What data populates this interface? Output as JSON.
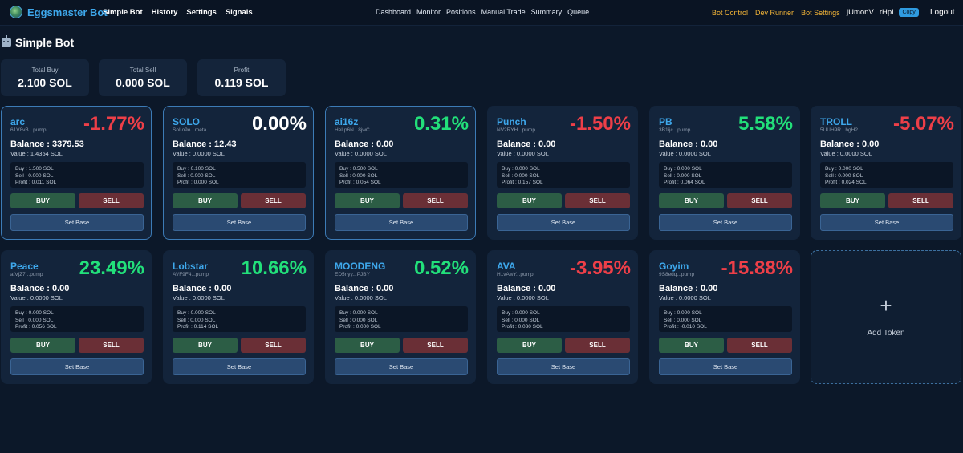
{
  "brand": {
    "name": "Eggsmaster Bot"
  },
  "nav_left": [
    "Simple Bot",
    "History",
    "Settings",
    "Signals"
  ],
  "nav_center": [
    "Dashboard",
    "Monitor",
    "Positions",
    "Manual Trade",
    "Summary",
    "Queue"
  ],
  "nav_right": [
    "Bot Control",
    "Dev Runner",
    "Bot Settings"
  ],
  "wallet": {
    "address": "jUmonV...rHpL",
    "copy_label": "Copy"
  },
  "logout_label": "Logout",
  "page": {
    "title": "Simple Bot"
  },
  "stats": [
    {
      "label": "Total Buy",
      "value": "2.100 SOL"
    },
    {
      "label": "Total Sell",
      "value": "0.000 SOL"
    },
    {
      "label": "Profit",
      "value": "0.119 SOL"
    }
  ],
  "buttons": {
    "buy": "BUY",
    "sell": "SELL",
    "set_base": "Set Base"
  },
  "tokens": [
    {
      "name": "arc",
      "addr": "61V8vB...pump",
      "change": "-1.77%",
      "trend": "down",
      "selected": true,
      "balance": "Balance : 3379.53",
      "value": "Value : 1.4354 SOL",
      "buy": "Buy : 1.500 SOL",
      "sell": "Sell : 0.000 SOL",
      "profit": "Profit : 0.011 SOL"
    },
    {
      "name": "SOLO",
      "addr": "SoLo9o...meta",
      "change": "0.00%",
      "trend": "neutral",
      "selected": true,
      "balance": "Balance : 12.43",
      "value": "Value : 0.0000 SOL",
      "buy": "Buy : 0.100 SOL",
      "sell": "Sell : 0.000 SOL",
      "profit": "Profit : 0.000 SOL"
    },
    {
      "name": "ai16z",
      "addr": "HeLp6N...8jwC",
      "change": "0.31%",
      "trend": "up",
      "selected": true,
      "balance": "Balance : 0.00",
      "value": "Value : 0.0000 SOL",
      "buy": "Buy : 0.500 SOL",
      "sell": "Sell : 0.000 SOL",
      "profit": "Profit : 0.054 SOL"
    },
    {
      "name": "Punch",
      "addr": "NV2RYH...pump",
      "change": "-1.50%",
      "trend": "down",
      "selected": false,
      "balance": "Balance : 0.00",
      "value": "Value : 0.0000 SOL",
      "buy": "Buy : 0.000 SOL",
      "sell": "Sell : 0.000 SOL",
      "profit": "Profit : 0.157 SOL"
    },
    {
      "name": "PB",
      "addr": "3B1ijc...pump",
      "change": "5.58%",
      "trend": "up",
      "selected": false,
      "balance": "Balance : 0.00",
      "value": "Value : 0.0000 SOL",
      "buy": "Buy : 0.000 SOL",
      "sell": "Sell : 0.000 SOL",
      "profit": "Profit : 0.064 SOL"
    },
    {
      "name": "TROLL",
      "addr": "5UUH9R...hgH2",
      "change": "-5.07%",
      "trend": "down",
      "selected": false,
      "balance": "Balance : 0.00",
      "value": "Value : 0.0000 SOL",
      "buy": "Buy : 0.000 SOL",
      "sell": "Sell : 0.000 SOL",
      "profit": "Profit : 0.024 SOL"
    },
    {
      "name": "Peace",
      "addr": "atVjZ7...pump",
      "change": "23.49%",
      "trend": "up",
      "selected": false,
      "balance": "Balance : 0.00",
      "value": "Value : 0.0000 SOL",
      "buy": "Buy : 0.000 SOL",
      "sell": "Sell : 0.000 SOL",
      "profit": "Profit : 0.056 SOL"
    },
    {
      "name": "Lobstar",
      "addr": "AVF9F4...pump",
      "change": "10.66%",
      "trend": "up",
      "selected": false,
      "balance": "Balance : 0.00",
      "value": "Value : 0.0000 SOL",
      "buy": "Buy : 0.000 SOL",
      "sell": "Sell : 0.000 SOL",
      "profit": "Profit : 0.114 SOL"
    },
    {
      "name": "MOODENG",
      "addr": "ED5nyy...PJBY",
      "change": "0.52%",
      "trend": "up",
      "selected": false,
      "balance": "Balance : 0.00",
      "value": "Value : 0.0000 SOL",
      "buy": "Buy : 0.000 SOL",
      "sell": "Sell : 0.000 SOL",
      "profit": "Profit : 0.000 SOL"
    },
    {
      "name": "AVA",
      "addr": "H1vAwY...pump",
      "change": "-3.95%",
      "trend": "down",
      "selected": false,
      "balance": "Balance : 0.00",
      "value": "Value : 0.0000 SOL",
      "buy": "Buy : 0.000 SOL",
      "sell": "Sell : 0.000 SOL",
      "profit": "Profit : 0.030 SOL"
    },
    {
      "name": "Goyim",
      "addr": "9S8edq...pump",
      "change": "-15.88%",
      "trend": "down",
      "selected": false,
      "balance": "Balance : 0.00",
      "value": "Value : 0.0000 SOL",
      "buy": "Buy : 0.000 SOL",
      "sell": "Sell : 0.000 SOL",
      "profit": "Profit : -0.010 SOL"
    }
  ],
  "add_token": {
    "icon": "plus-icon",
    "label": "Add Token"
  }
}
